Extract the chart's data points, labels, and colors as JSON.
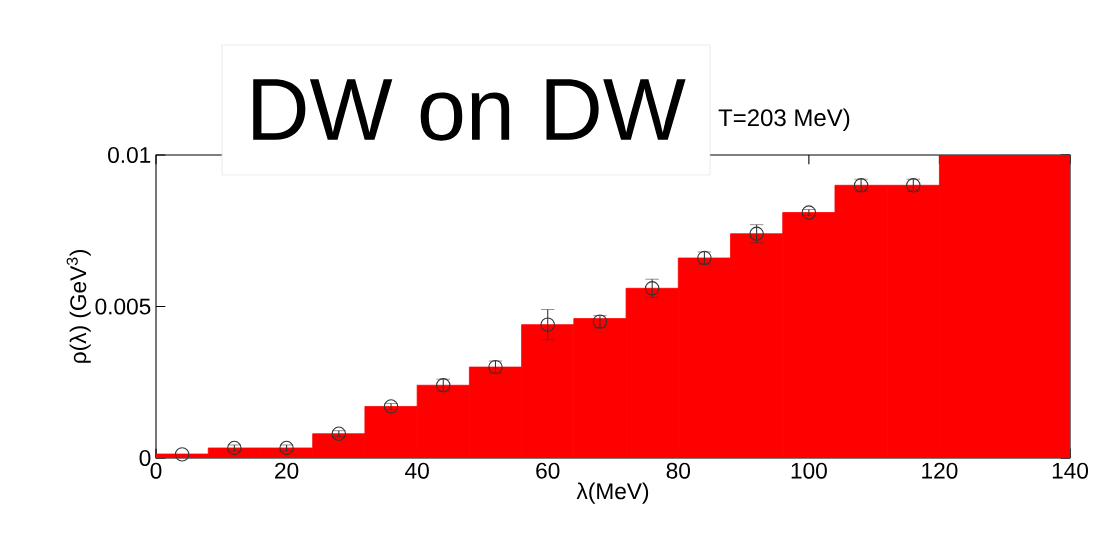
{
  "chart_data": {
    "type": "histogram",
    "title": "T=203 MeV)",
    "xlabel": "λ(MeV)",
    "ylabel": "ρ(λ) (GeV$^{3}$)",
    "annotations": [
      "DW on DW"
    ],
    "bins": [
      0,
      8,
      16,
      24,
      32,
      40,
      48,
      56,
      64,
      72,
      80,
      88,
      96,
      104,
      112,
      120,
      140
    ],
    "values": [
      0.00013,
      0.00033,
      0.00033,
      0.0008,
      0.0017,
      0.0024,
      0.003,
      0.0044,
      0.0046,
      0.0056,
      0.0066,
      0.0074,
      0.0081,
      0.009,
      0.009,
      0.01
    ],
    "color": "#ff0000",
    "series": [
      {
        "type": "scatter",
        "color": "#333333",
        "marker": "circle",
        "x": [
          4,
          12,
          20,
          28,
          36,
          44,
          52,
          60,
          68,
          76,
          84,
          92,
          100,
          108,
          116
        ],
        "values": [
          0.00012,
          0.00033,
          0.00033,
          0.0008,
          0.0017,
          0.0024,
          0.003,
          0.0044,
          0.0045,
          0.0056,
          0.0066,
          0.0074,
          0.0081,
          0.009,
          0.009
        ],
        "errors": [
          null,
          0.0001,
          0.0001,
          0.0001,
          0.0001,
          0.0002,
          0.0002,
          0.0005,
          0.0002,
          0.0003,
          0.0002,
          0.0003,
          0.0001,
          0.0002,
          0.0002
        ]
      }
    ],
    "xlim": [
      0,
      140
    ],
    "ylim": [
      0,
      0.01
    ],
    "xticks": [
      0,
      20,
      40,
      60,
      80,
      100,
      120,
      140
    ],
    "yticks": [
      0,
      0.005,
      0.01
    ],
    "grid": false
  }
}
